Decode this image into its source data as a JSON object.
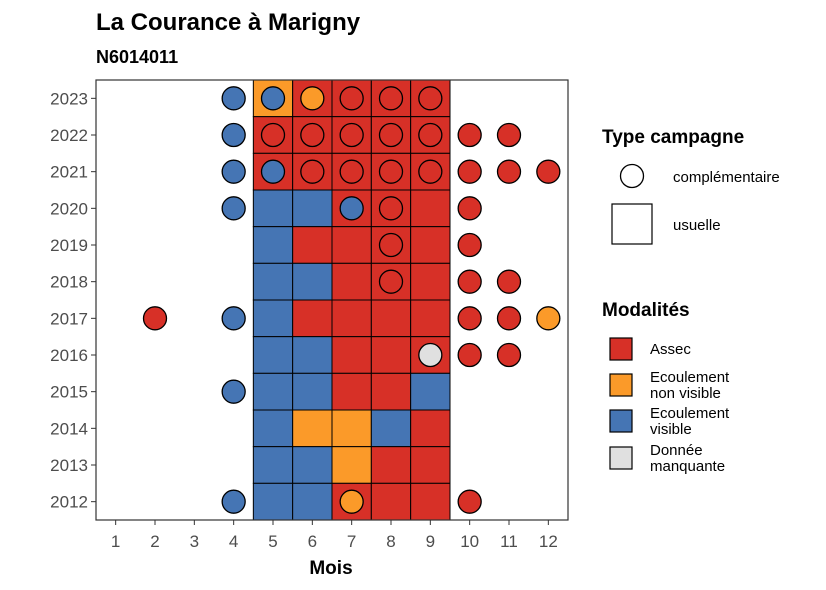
{
  "chart_data": {
    "type": "heatmap",
    "title": "La Courance à Marigny",
    "subtitle": "N6014011",
    "xlabel": "Mois",
    "ylabel": "",
    "x_ticks": [
      "1",
      "2",
      "3",
      "4",
      "5",
      "6",
      "7",
      "8",
      "9",
      "10",
      "11",
      "12"
    ],
    "y_ticks": [
      "2012",
      "2013",
      "2014",
      "2015",
      "2016",
      "2017",
      "2018",
      "2019",
      "2020",
      "2021",
      "2022",
      "2023"
    ],
    "xlim": [
      0.5,
      12.5
    ],
    "ylim": [
      2011.5,
      2023.5
    ],
    "legend_shape": {
      "title": "Type campagne",
      "entries": [
        {
          "key": "complementaire",
          "label": "complémentaire",
          "shape": "circle"
        },
        {
          "key": "usuelle",
          "label": "usuelle",
          "shape": "square"
        }
      ]
    },
    "legend_color": {
      "title": "Modalités",
      "entries": [
        {
          "key": "A",
          "label_lines": [
            "Assec"
          ],
          "color": "#d73027"
        },
        {
          "key": "N",
          "label_lines": [
            "Ecoulement",
            "non visible"
          ],
          "color": "#fb9a29"
        },
        {
          "key": "V",
          "label_lines": [
            "Ecoulement",
            "visible"
          ],
          "color": "#4575b4"
        },
        {
          "key": "M",
          "label_lines": [
            "Donnée",
            "manquante"
          ],
          "color": "#e0e0e0"
        }
      ]
    },
    "usuelle": [
      {
        "year": 2023,
        "values": {
          "5": "N",
          "6": "A",
          "7": "A",
          "8": "A",
          "9": "A"
        }
      },
      {
        "year": 2022,
        "values": {
          "5": "A",
          "6": "A",
          "7": "A",
          "8": "A",
          "9": "A"
        }
      },
      {
        "year": 2021,
        "values": {
          "5": "A",
          "6": "A",
          "7": "A",
          "8": "A",
          "9": "A"
        }
      },
      {
        "year": 2020,
        "values": {
          "5": "V",
          "6": "V",
          "7": "A",
          "8": "A",
          "9": "A"
        }
      },
      {
        "year": 2019,
        "values": {
          "5": "V",
          "6": "A",
          "7": "A",
          "8": "A",
          "9": "A"
        }
      },
      {
        "year": 2018,
        "values": {
          "5": "V",
          "6": "V",
          "7": "A",
          "8": "A",
          "9": "A"
        }
      },
      {
        "year": 2017,
        "values": {
          "5": "V",
          "6": "A",
          "7": "A",
          "8": "A",
          "9": "A"
        }
      },
      {
        "year": 2016,
        "values": {
          "5": "V",
          "6": "V",
          "7": "A",
          "8": "A",
          "9": "A"
        }
      },
      {
        "year": 2015,
        "values": {
          "5": "V",
          "6": "V",
          "7": "A",
          "8": "A",
          "9": "V"
        }
      },
      {
        "year": 2014,
        "values": {
          "5": "V",
          "6": "N",
          "7": "N",
          "8": "V",
          "9": "A"
        }
      },
      {
        "year": 2013,
        "values": {
          "5": "V",
          "6": "V",
          "7": "N",
          "8": "A",
          "9": "A"
        }
      },
      {
        "year": 2012,
        "values": {
          "5": "V",
          "6": "V",
          "7": "A",
          "8": "A",
          "9": "A"
        }
      }
    ],
    "complementaire": [
      {
        "year": 2023,
        "values": {
          "4": "V",
          "5": "V",
          "6": "N",
          "7": "A",
          "8": "A",
          "9": "A"
        }
      },
      {
        "year": 2022,
        "values": {
          "4": "V",
          "5": "A",
          "6": "A",
          "7": "A",
          "8": "A",
          "9": "A",
          "10": "A",
          "11": "A"
        }
      },
      {
        "year": 2021,
        "values": {
          "4": "V",
          "5": "V",
          "6": "A",
          "7": "A",
          "8": "A",
          "9": "A",
          "10": "A",
          "11": "A",
          "12": "A"
        }
      },
      {
        "year": 2020,
        "values": {
          "4": "V",
          "7": "V",
          "8": "A",
          "10": "A"
        }
      },
      {
        "year": 2019,
        "values": {
          "8": "A",
          "10": "A"
        }
      },
      {
        "year": 2018,
        "values": {
          "8": "A",
          "10": "A",
          "11": "A"
        }
      },
      {
        "year": 2017,
        "values": {
          "2": "A",
          "4": "V",
          "10": "A",
          "11": "A",
          "12": "N"
        }
      },
      {
        "year": 2016,
        "values": {
          "9": "M",
          "10": "A",
          "11": "A"
        }
      },
      {
        "year": 2015,
        "values": {
          "4": "V"
        }
      },
      {
        "year": 2012,
        "values": {
          "4": "V",
          "7": "N",
          "10": "A"
        }
      }
    ]
  }
}
